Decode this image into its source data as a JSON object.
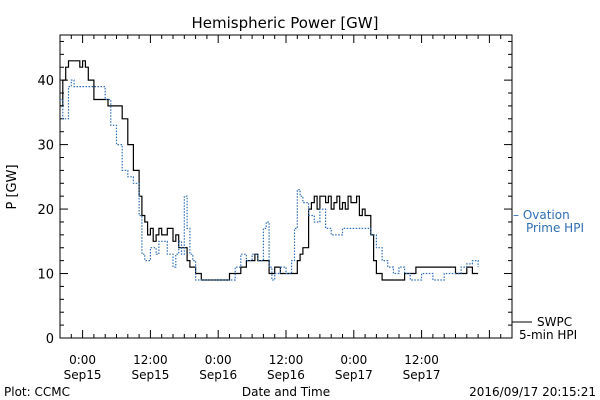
{
  "chart_data": {
    "type": "line",
    "title": "Hemispheric Power [GW]",
    "xlabel": "Date and Time",
    "ylabel": "P [GW]",
    "xlim": [
      -4,
      76
    ],
    "ylim": [
      0,
      47
    ],
    "y_ticks": [
      0,
      10,
      20,
      30,
      40
    ],
    "x_ticks": [
      {
        "at": 0,
        "time": "0:00",
        "date": "Sep15"
      },
      {
        "at": 12,
        "time": "12:00",
        "date": "Sep15"
      },
      {
        "at": 24,
        "time": "0:00",
        "date": "Sep16"
      },
      {
        "at": 36,
        "time": "12:00",
        "date": "Sep16"
      },
      {
        "at": 48,
        "time": "0:00",
        "date": "Sep17"
      },
      {
        "at": 60,
        "time": "12:00",
        "date": "Sep17"
      }
    ],
    "grid": false,
    "legend": {
      "placement": "right",
      "entries": [
        {
          "series": "ovation",
          "line1": "– Ovation",
          "line2": "Prime HPI"
        },
        {
          "series": "swpc",
          "line1": "SWPC",
          "line2": "5-min HPI"
        }
      ]
    },
    "series": [
      {
        "name": "SWPC 5-min HPI",
        "key": "swpc",
        "color": "#000000",
        "points": [
          [
            -4,
            36
          ],
          [
            -3.5,
            40
          ],
          [
            -3,
            42
          ],
          [
            -2.5,
            43
          ],
          [
            -1,
            43
          ],
          [
            -0.5,
            42
          ],
          [
            0,
            43
          ],
          [
            0.5,
            42
          ],
          [
            1,
            40
          ],
          [
            2,
            37
          ],
          [
            4,
            37
          ],
          [
            4.5,
            36
          ],
          [
            6,
            36
          ],
          [
            7,
            34
          ],
          [
            8,
            30
          ],
          [
            9,
            26
          ],
          [
            10,
            22
          ],
          [
            10.5,
            19
          ],
          [
            11,
            18
          ],
          [
            11.5,
            16
          ],
          [
            12,
            17
          ],
          [
            12.5,
            15
          ],
          [
            13,
            16
          ],
          [
            13.5,
            17
          ],
          [
            14,
            16
          ],
          [
            15,
            17
          ],
          [
            16,
            15
          ],
          [
            16.5,
            16
          ],
          [
            17,
            14
          ],
          [
            18,
            14
          ],
          [
            18.5,
            12
          ],
          [
            19,
            11
          ],
          [
            20,
            10
          ],
          [
            21,
            9
          ],
          [
            22,
            9
          ],
          [
            25,
            9
          ],
          [
            26,
            10
          ],
          [
            27,
            10
          ],
          [
            28,
            11
          ],
          [
            29,
            12
          ],
          [
            30,
            12
          ],
          [
            30.5,
            13
          ],
          [
            31,
            12
          ],
          [
            32,
            12
          ],
          [
            33,
            10
          ],
          [
            34,
            11
          ],
          [
            35,
            10
          ],
          [
            37,
            10
          ],
          [
            38,
            12
          ],
          [
            38.5,
            13
          ],
          [
            39,
            14
          ],
          [
            40,
            20
          ],
          [
            40.5,
            21
          ],
          [
            41,
            22
          ],
          [
            41.5,
            20
          ],
          [
            42,
            22
          ],
          [
            43,
            21
          ],
          [
            43.5,
            22
          ],
          [
            44,
            20
          ],
          [
            44.5,
            21
          ],
          [
            45,
            22
          ],
          [
            45.5,
            20
          ],
          [
            46,
            21
          ],
          [
            46.5,
            20
          ],
          [
            47,
            22
          ],
          [
            47.5,
            21
          ],
          [
            48,
            21
          ],
          [
            48.5,
            22
          ],
          [
            49,
            19
          ],
          [
            49.5,
            20
          ],
          [
            50,
            19
          ],
          [
            51,
            16
          ],
          [
            51.5,
            12
          ],
          [
            52,
            10
          ],
          [
            53,
            9
          ],
          [
            56,
            9
          ],
          [
            57,
            10
          ],
          [
            58,
            10
          ],
          [
            59,
            11
          ],
          [
            66,
            10
          ],
          [
            67,
            10
          ],
          [
            68,
            11
          ],
          [
            68.5,
            11
          ],
          [
            69,
            10
          ],
          [
            70,
            10
          ]
        ]
      },
      {
        "name": "Ovation Prime HPI",
        "key": "ovation",
        "color": "#2f6fb5",
        "points": [
          [
            -4,
            37
          ],
          [
            -3.5,
            34
          ],
          [
            -3,
            34
          ],
          [
            -2.5,
            39
          ],
          [
            -2,
            40
          ],
          [
            -1.5,
            39
          ],
          [
            3,
            39
          ],
          [
            4,
            37
          ],
          [
            5,
            33
          ],
          [
            6,
            30
          ],
          [
            7,
            26
          ],
          [
            8,
            25
          ],
          [
            9,
            24
          ],
          [
            10,
            19
          ],
          [
            10.5,
            13
          ],
          [
            11,
            12
          ],
          [
            11.5,
            12
          ],
          [
            12,
            14
          ],
          [
            13,
            13
          ],
          [
            13.5,
            15
          ],
          [
            14,
            15
          ],
          [
            15,
            13
          ],
          [
            16,
            11
          ],
          [
            16.5,
            13
          ],
          [
            17,
            15
          ],
          [
            17.5,
            13
          ],
          [
            18,
            22
          ],
          [
            18.5,
            17
          ],
          [
            19,
            13
          ],
          [
            19.5,
            12
          ],
          [
            20,
            9
          ],
          [
            21,
            9
          ],
          [
            26,
            9
          ],
          [
            27,
            11
          ],
          [
            28,
            13
          ],
          [
            29,
            12
          ],
          [
            30,
            13
          ],
          [
            31,
            12
          ],
          [
            32,
            17
          ],
          [
            32.5,
            18
          ],
          [
            33,
            11
          ],
          [
            33.5,
            9
          ],
          [
            34,
            10
          ],
          [
            35,
            11
          ],
          [
            36,
            10
          ],
          [
            37,
            12
          ],
          [
            37.5,
            17
          ],
          [
            38,
            23
          ],
          [
            38.5,
            22
          ],
          [
            39,
            21
          ],
          [
            40,
            19
          ],
          [
            41,
            18
          ],
          [
            42,
            20
          ],
          [
            43,
            17
          ],
          [
            44,
            16
          ],
          [
            46,
            17
          ],
          [
            48,
            17
          ],
          [
            50,
            17
          ],
          [
            51,
            16
          ],
          [
            52,
            14
          ],
          [
            53,
            12
          ],
          [
            54,
            11
          ],
          [
            55,
            10
          ],
          [
            56,
            11
          ],
          [
            57,
            10
          ],
          [
            58,
            9
          ],
          [
            60,
            10
          ],
          [
            62,
            9
          ],
          [
            64,
            10
          ],
          [
            66,
            10
          ],
          [
            67,
            11
          ],
          [
            68,
            11.5
          ],
          [
            69,
            12
          ],
          [
            70,
            11
          ]
        ]
      }
    ]
  },
  "footer": {
    "credit": "Plot: CCMC",
    "timestamp": "2016/09/17 20:15:21"
  }
}
